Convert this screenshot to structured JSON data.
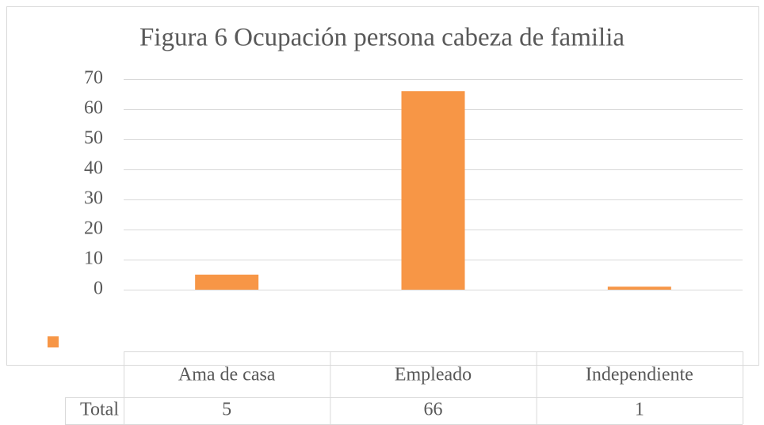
{
  "chart_data": {
    "type": "bar",
    "title": "Figura 6 Ocupación persona cabeza de familia",
    "categories": [
      "Ama de casa",
      "Empleado",
      "Independiente"
    ],
    "series": [
      {
        "name": "Total",
        "color": "#f79646",
        "values": [
          5,
          66,
          1
        ]
      }
    ],
    "ylim": [
      0,
      70
    ],
    "yticks": [
      0,
      10,
      20,
      30,
      40,
      50,
      60,
      70
    ],
    "grid": true
  }
}
